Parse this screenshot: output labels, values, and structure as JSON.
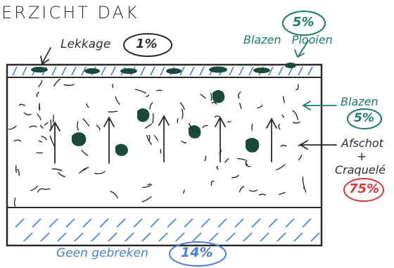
{
  "title": "ERZICHT DAK",
  "labels": {
    "leakage": {
      "text": "Lekkage",
      "pct": "1%",
      "color": "#2f2f2f"
    },
    "blisters_folds": {
      "text": "Blazen Plooien",
      "pct": "5%",
      "color": "#1d7d6b"
    },
    "blisters": {
      "text": "Blazen",
      "pct": "5%",
      "color": "#1d7d6b"
    },
    "peeling_line1": "Afschot",
    "peeling_plus": "+",
    "peeling_line2": "Craquelé",
    "peeling_pct": "75%",
    "no_defects": {
      "text": "Geen gebreken",
      "pct": "14%",
      "color": "#4a7fd6"
    }
  },
  "colors": {
    "blister": "#1a4a3c",
    "hatch": "#4a7fd6",
    "outline": "#2a2a2a",
    "teal": "#1d7d6b",
    "red": "#d43a3a"
  }
}
